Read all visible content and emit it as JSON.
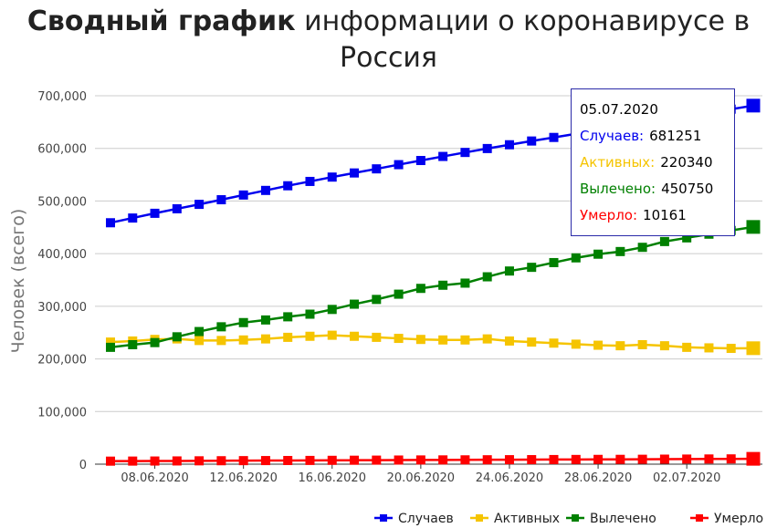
{
  "title": {
    "bold": "Сводный график",
    "rest": " информации о коронавирусе в Россия"
  },
  "tooltip": {
    "date": "05.07.2020",
    "rows": [
      {
        "label": "Случаев:",
        "value": "681251",
        "color": "#0000ee"
      },
      {
        "label": "Активных:",
        "value": "220340",
        "color": "#f5c400"
      },
      {
        "label": "Вылечено:",
        "value": "450750",
        "color": "#008000"
      },
      {
        "label": "Умерло:",
        "value": "10161",
        "color": "#ff0000"
      }
    ]
  },
  "chart_data": {
    "type": "line",
    "ylabel": "Человек (всего)",
    "ylim": [
      0,
      700000
    ],
    "yticks": [
      "0",
      "100,000",
      "200,000",
      "300,000",
      "400,000",
      "500,000",
      "600,000",
      "700,000"
    ],
    "x": [
      "06.06.2020",
      "07.06.2020",
      "08.06.2020",
      "09.06.2020",
      "10.06.2020",
      "11.06.2020",
      "12.06.2020",
      "13.06.2020",
      "14.06.2020",
      "15.06.2020",
      "16.06.2020",
      "17.06.2020",
      "18.06.2020",
      "19.06.2020",
      "20.06.2020",
      "21.06.2020",
      "22.06.2020",
      "23.06.2020",
      "24.06.2020",
      "25.06.2020",
      "26.06.2020",
      "27.06.2020",
      "28.06.2020",
      "29.06.2020",
      "30.06.2020",
      "01.07.2020",
      "02.07.2020",
      "03.07.2020",
      "04.07.2020",
      "05.07.2020"
    ],
    "xticks": [
      "08.06.2020",
      "12.06.2020",
      "16.06.2020",
      "20.06.2020",
      "24.06.2020",
      "28.06.2020",
      "02.07.2020"
    ],
    "legend_position": "bottom-right",
    "series": [
      {
        "name": "Случаев",
        "color": "#0000ee",
        "values": [
          458689,
          467673,
          476658,
          485253,
          493657,
          502436,
          511423,
          520129,
          528964,
          537210,
          545458,
          553301,
          561091,
          569063,
          576952,
          584680,
          592280,
          599705,
          606881,
          613994,
          620794,
          627646,
          634437,
          641156,
          647849,
          654405,
          661165,
          667883,
          674515,
          681251
        ]
      },
      {
        "name": "Активных",
        "color": "#f5c400",
        "values": [
          232000,
          234000,
          237000,
          238000,
          235000,
          235000,
          236000,
          238000,
          241000,
          243000,
          245000,
          243000,
          241000,
          239000,
          237000,
          236000,
          236000,
          238000,
          234000,
          232000,
          230000,
          228000,
          226000,
          225000,
          227000,
          225000,
          222000,
          221000,
          220000,
          220340
        ]
      },
      {
        "name": "Вылечено",
        "color": "#008000",
        "values": [
          222000,
          227000,
          231000,
          242000,
          252000,
          261000,
          269000,
          274000,
          280000,
          285000,
          294000,
          304000,
          313000,
          323000,
          334000,
          340000,
          344000,
          356000,
          367000,
          374000,
          383000,
          392000,
          399000,
          404000,
          412000,
          423000,
          430000,
          437000,
          444000,
          450750
        ]
      },
      {
        "name": "Умерло",
        "color": "#ff0000",
        "values": [
          5725,
          5859,
          5971,
          6142,
          6358,
          6532,
          6705,
          6829,
          6948,
          7091,
          7274,
          7478,
          7650,
          7831,
          8002,
          8111,
          8196,
          8359,
          8513,
          8605,
          8781,
          8959,
          9073,
          9152,
          9306,
          9536,
          9683,
          9859,
          10027,
          10161
        ]
      }
    ]
  }
}
